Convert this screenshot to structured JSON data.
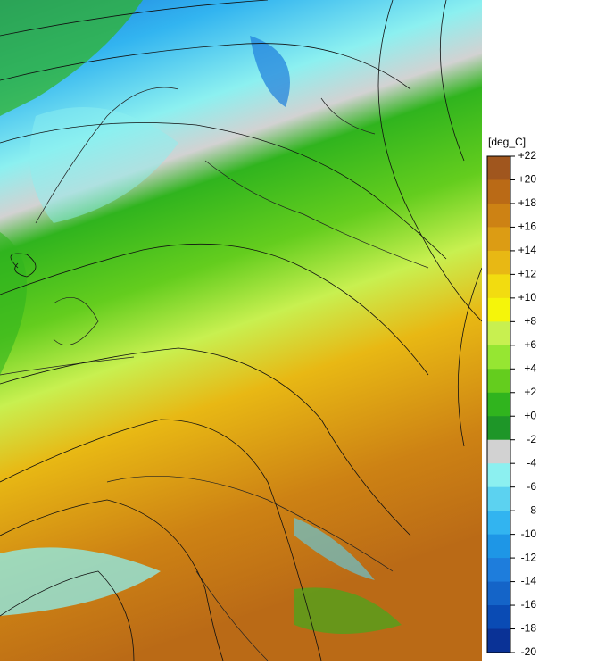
{
  "legend": {
    "title": "[deg_C]",
    "labels": [
      "+22",
      "+20",
      "+18",
      "+16",
      "+14",
      "+12",
      "+10",
      "+8",
      "+6",
      "+4",
      "+2",
      "+0",
      "-2",
      "-4",
      "-6",
      "-8",
      "-10",
      "-12",
      "-14",
      "-16",
      "-18",
      "-20"
    ],
    "colors": [
      "#a0561e",
      "#ba6a16",
      "#cd8214",
      "#dc9c14",
      "#e8b814",
      "#f2dc10",
      "#f5f50a",
      "#c8f050",
      "#96e632",
      "#64cd1e",
      "#30b41e",
      "#1e9628",
      "#d2d2d2",
      "#8cf0f0",
      "#5cd2f0",
      "#32b4f0",
      "#1e96e6",
      "#1e7ddc",
      "#1464c8",
      "#0a4bb4",
      "#0a3296",
      "#001e82"
    ]
  }
}
